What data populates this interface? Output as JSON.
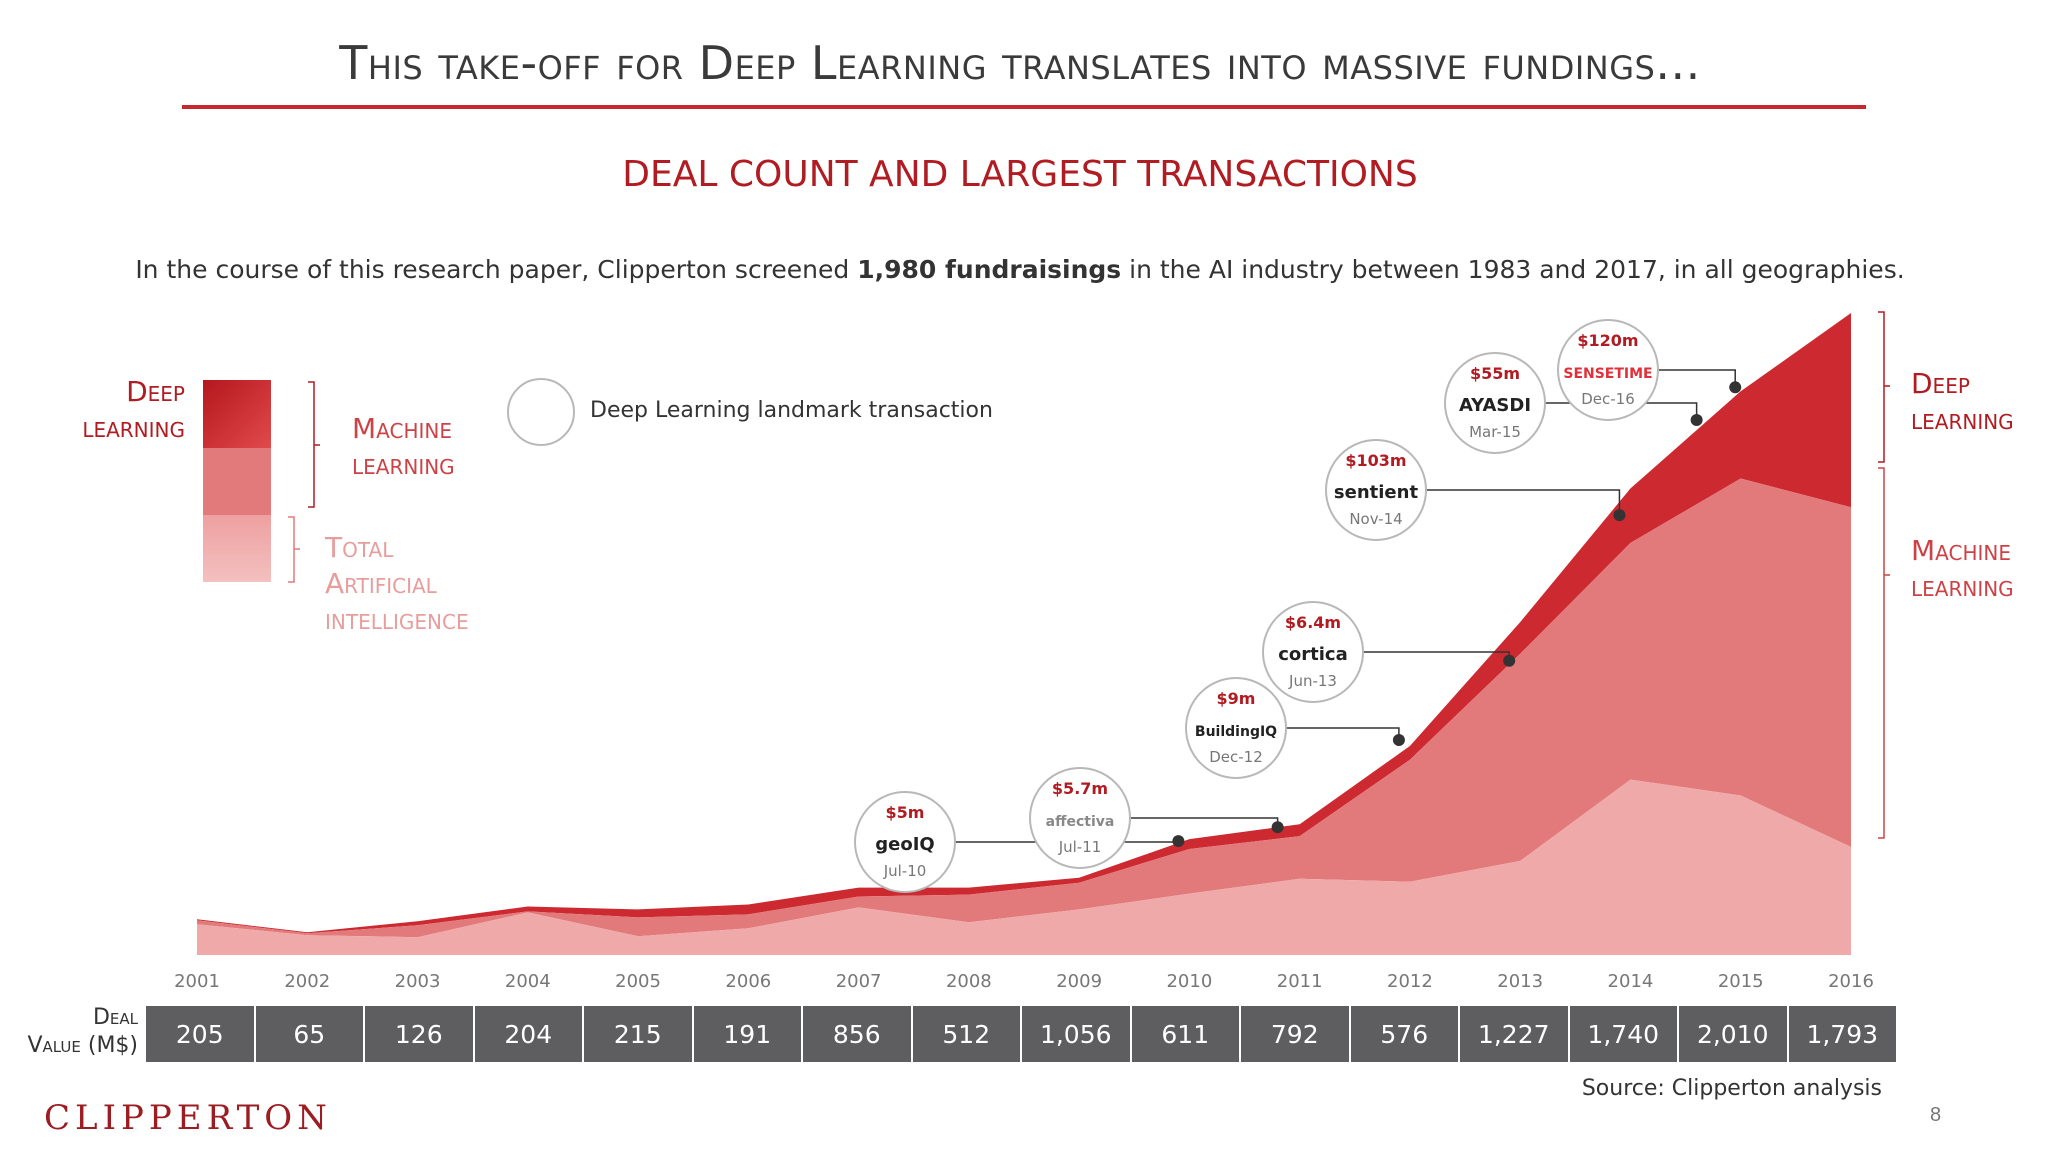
{
  "header": {
    "title": "This take-off for Deep Learning translates into massive fundings...",
    "subtitle": "DEAL COUNT AND LARGEST TRANSACTIONS",
    "intro_before": "In the course of this research paper, Clipperton screened ",
    "intro_bold": "1,980 fundraisings",
    "intro_after": " in the AI industry between 1983 and 2017, in all geographies."
  },
  "legend": {
    "deep_learning": [
      "Deep",
      "learning"
    ],
    "machine_learning": [
      "Machine",
      "learning"
    ],
    "total_ai": [
      "Total",
      "Artificial",
      "intelligence"
    ],
    "landmark": "Deep Learning landmark transaction"
  },
  "right_labels": {
    "deep_learning": [
      "Deep",
      "learning"
    ],
    "machine_learning": [
      "Machine",
      "learning"
    ]
  },
  "colors": {
    "deep_learning": "#cc2a30",
    "machine_learning": "#e27a7b",
    "total_ai": "#f0a9a9",
    "accent": "#b01c22",
    "table_bg": "#5e5d60"
  },
  "chart_data": {
    "type": "area",
    "title": "DEAL COUNT AND LARGEST TRANSACTIONS",
    "x": [
      "2001",
      "2002",
      "2003",
      "2004",
      "2005",
      "2006",
      "2007",
      "2008",
      "2009",
      "2010",
      "2011",
      "2012",
      "2013",
      "2014",
      "2015",
      "2016"
    ],
    "stacked": true,
    "series": [
      {
        "name": "Total Artificial intelligence",
        "values": [
          31,
          20,
          18,
          43,
          19,
          27,
          48,
          33,
          46,
          62,
          77,
          74,
          95,
          177,
          161,
          109
        ]
      },
      {
        "name": "Machine learning",
        "values": [
          4,
          2,
          12,
          1,
          19,
          14,
          11,
          28,
          27,
          45,
          43,
          123,
          209,
          239,
          320,
          343
        ]
      },
      {
        "name": "Deep learning",
        "values": [
          1,
          1,
          4,
          5,
          8,
          10,
          9,
          7,
          5,
          10,
          12,
          14,
          32,
          55,
          88,
          196
        ]
      }
    ],
    "landmarks": [
      {
        "amount": "$5m",
        "company": "geoIQ",
        "date": "Jul-10",
        "x": 2009.9,
        "y": 115
      },
      {
        "amount": "$5.7m",
        "company": "affectiva",
        "date": "Jul-11",
        "x": 2010.8,
        "y": 129
      },
      {
        "amount": "$9m",
        "company": "BuildingIQ",
        "date": "Dec-12",
        "x": 2011.9,
        "y": 217
      },
      {
        "amount": "$6.4m",
        "company": "cortica",
        "date": "Jun-13",
        "x": 2012.9,
        "y": 297
      },
      {
        "amount": "$103m",
        "company": "sentient",
        "date": "Nov-14",
        "x": 2013.9,
        "y": 444
      },
      {
        "amount": "$55m",
        "company": "AYASDI",
        "date": "Mar-15",
        "x": 2014.6,
        "y": 540
      },
      {
        "amount": "$120m",
        "company": "SENSETIME",
        "date": "Dec-16",
        "x": 2014.95,
        "y": 573
      }
    ],
    "deal_value_label": [
      "Deal",
      "Value (M$)"
    ],
    "deal_values": [
      "205",
      "65",
      "126",
      "204",
      "215",
      "191",
      "856",
      "512",
      "1,056",
      "611",
      "792",
      "576",
      "1,227",
      "1,740",
      "2,010",
      "1,793"
    ],
    "grid": false
  },
  "footer": {
    "source": "Source: Clipperton analysis",
    "brand": "CLIPPERTON",
    "page_number": "8"
  }
}
